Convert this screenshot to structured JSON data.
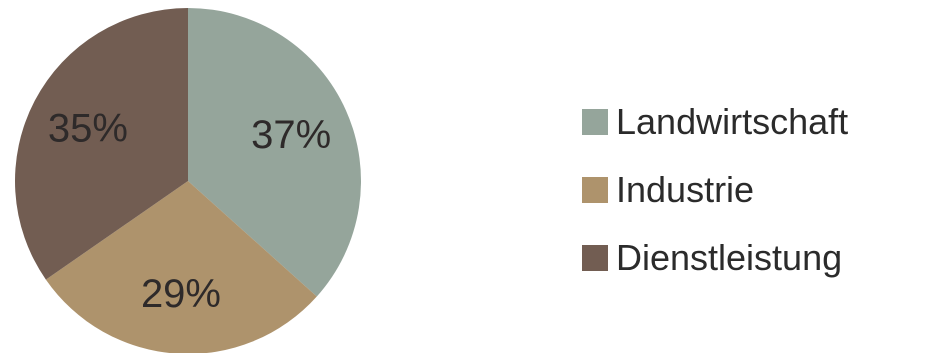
{
  "chart_data": {
    "type": "pie",
    "title": "",
    "categories": [
      "Landwirtschaft",
      "Industrie",
      "Dienstleistung"
    ],
    "values": [
      37,
      29,
      35
    ],
    "labels": [
      "37%",
      "29%",
      "35%"
    ],
    "colors": [
      "#95a59b",
      "#ae936c",
      "#725d52"
    ],
    "legend_position": "right"
  }
}
